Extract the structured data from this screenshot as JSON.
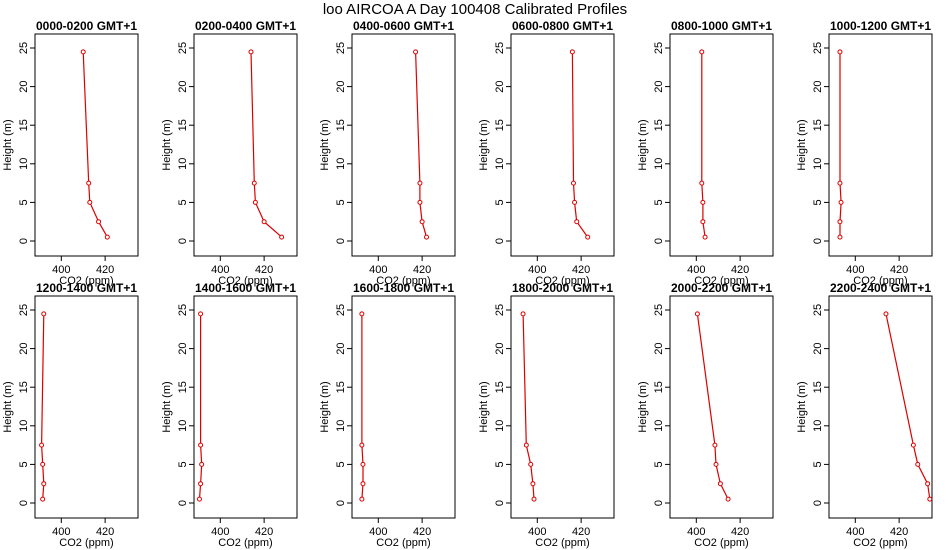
{
  "title": "loo AIRCOA A  Day 100408  Calibrated Profiles",
  "chart_data": {
    "type": "line",
    "series_color": "#dd0000",
    "xlabel": "CO2 (ppm)",
    "ylabel": "Height (m)",
    "xlim": [
      388,
      435
    ],
    "ylim": [
      0,
      25
    ],
    "xticks": [
      400,
      420
    ],
    "yticks": [
      0,
      5,
      10,
      15,
      20,
      25
    ],
    "panels": [
      {
        "title": "0000-0200  GMT+1",
        "x": [
          410.0,
          412.5,
          413.0,
          417.0,
          421.0
        ],
        "y": [
          24.5,
          7.5,
          5.0,
          2.5,
          0.5
        ]
      },
      {
        "title": "0200-0400  GMT+1",
        "x": [
          414.0,
          415.5,
          416.0,
          420.0,
          428.0
        ],
        "y": [
          24.5,
          7.5,
          5.0,
          2.5,
          0.5
        ]
      },
      {
        "title": "0400-0600  GMT+1",
        "x": [
          417.0,
          419.0,
          419.0,
          420.0,
          422.0
        ],
        "y": [
          24.5,
          7.5,
          5.0,
          2.5,
          0.5
        ]
      },
      {
        "title": "0600-0800  GMT+1",
        "x": [
          416.0,
          416.5,
          417.0,
          418.0,
          423.0
        ],
        "y": [
          24.5,
          7.5,
          5.0,
          2.5,
          0.5
        ]
      },
      {
        "title": "0800-1000  GMT+1",
        "x": [
          402.5,
          402.5,
          403.0,
          403.0,
          404.0
        ],
        "y": [
          24.5,
          7.5,
          5.0,
          2.5,
          0.5
        ]
      },
      {
        "title": "1000-1200  GMT+1",
        "x": [
          393.0,
          393.0,
          393.5,
          393.0,
          393.0
        ],
        "y": [
          24.5,
          7.5,
          5.0,
          2.5,
          0.5
        ]
      },
      {
        "title": "1200-1400  GMT+1",
        "x": [
          392.0,
          391.0,
          391.5,
          392.0,
          391.5
        ],
        "y": [
          24.5,
          7.5,
          5.0,
          2.5,
          0.5
        ]
      },
      {
        "title": "1400-1600  GMT+1",
        "x": [
          391.0,
          391.0,
          391.5,
          391.0,
          390.5
        ],
        "y": [
          24.5,
          7.5,
          5.0,
          2.5,
          0.5
        ]
      },
      {
        "title": "1600-1800  GMT+1",
        "x": [
          392.5,
          392.5,
          393.0,
          393.0,
          392.5
        ],
        "y": [
          24.5,
          7.5,
          5.0,
          2.5,
          0.5
        ]
      },
      {
        "title": "1800-2000  GMT+1",
        "x": [
          393.5,
          395.0,
          397.0,
          398.0,
          398.5
        ],
        "y": [
          24.5,
          7.5,
          5.0,
          2.5,
          0.5
        ]
      },
      {
        "title": "2000-2200  GMT+1",
        "x": [
          400.5,
          408.5,
          409.0,
          411.0,
          414.5
        ],
        "y": [
          24.5,
          7.5,
          5.0,
          2.5,
          0.5
        ]
      },
      {
        "title": "2200-2400  GMT+1",
        "x": [
          414.0,
          426.5,
          428.5,
          433.0,
          434.0
        ],
        "y": [
          24.5,
          7.5,
          5.0,
          2.5,
          0.5
        ]
      }
    ]
  }
}
